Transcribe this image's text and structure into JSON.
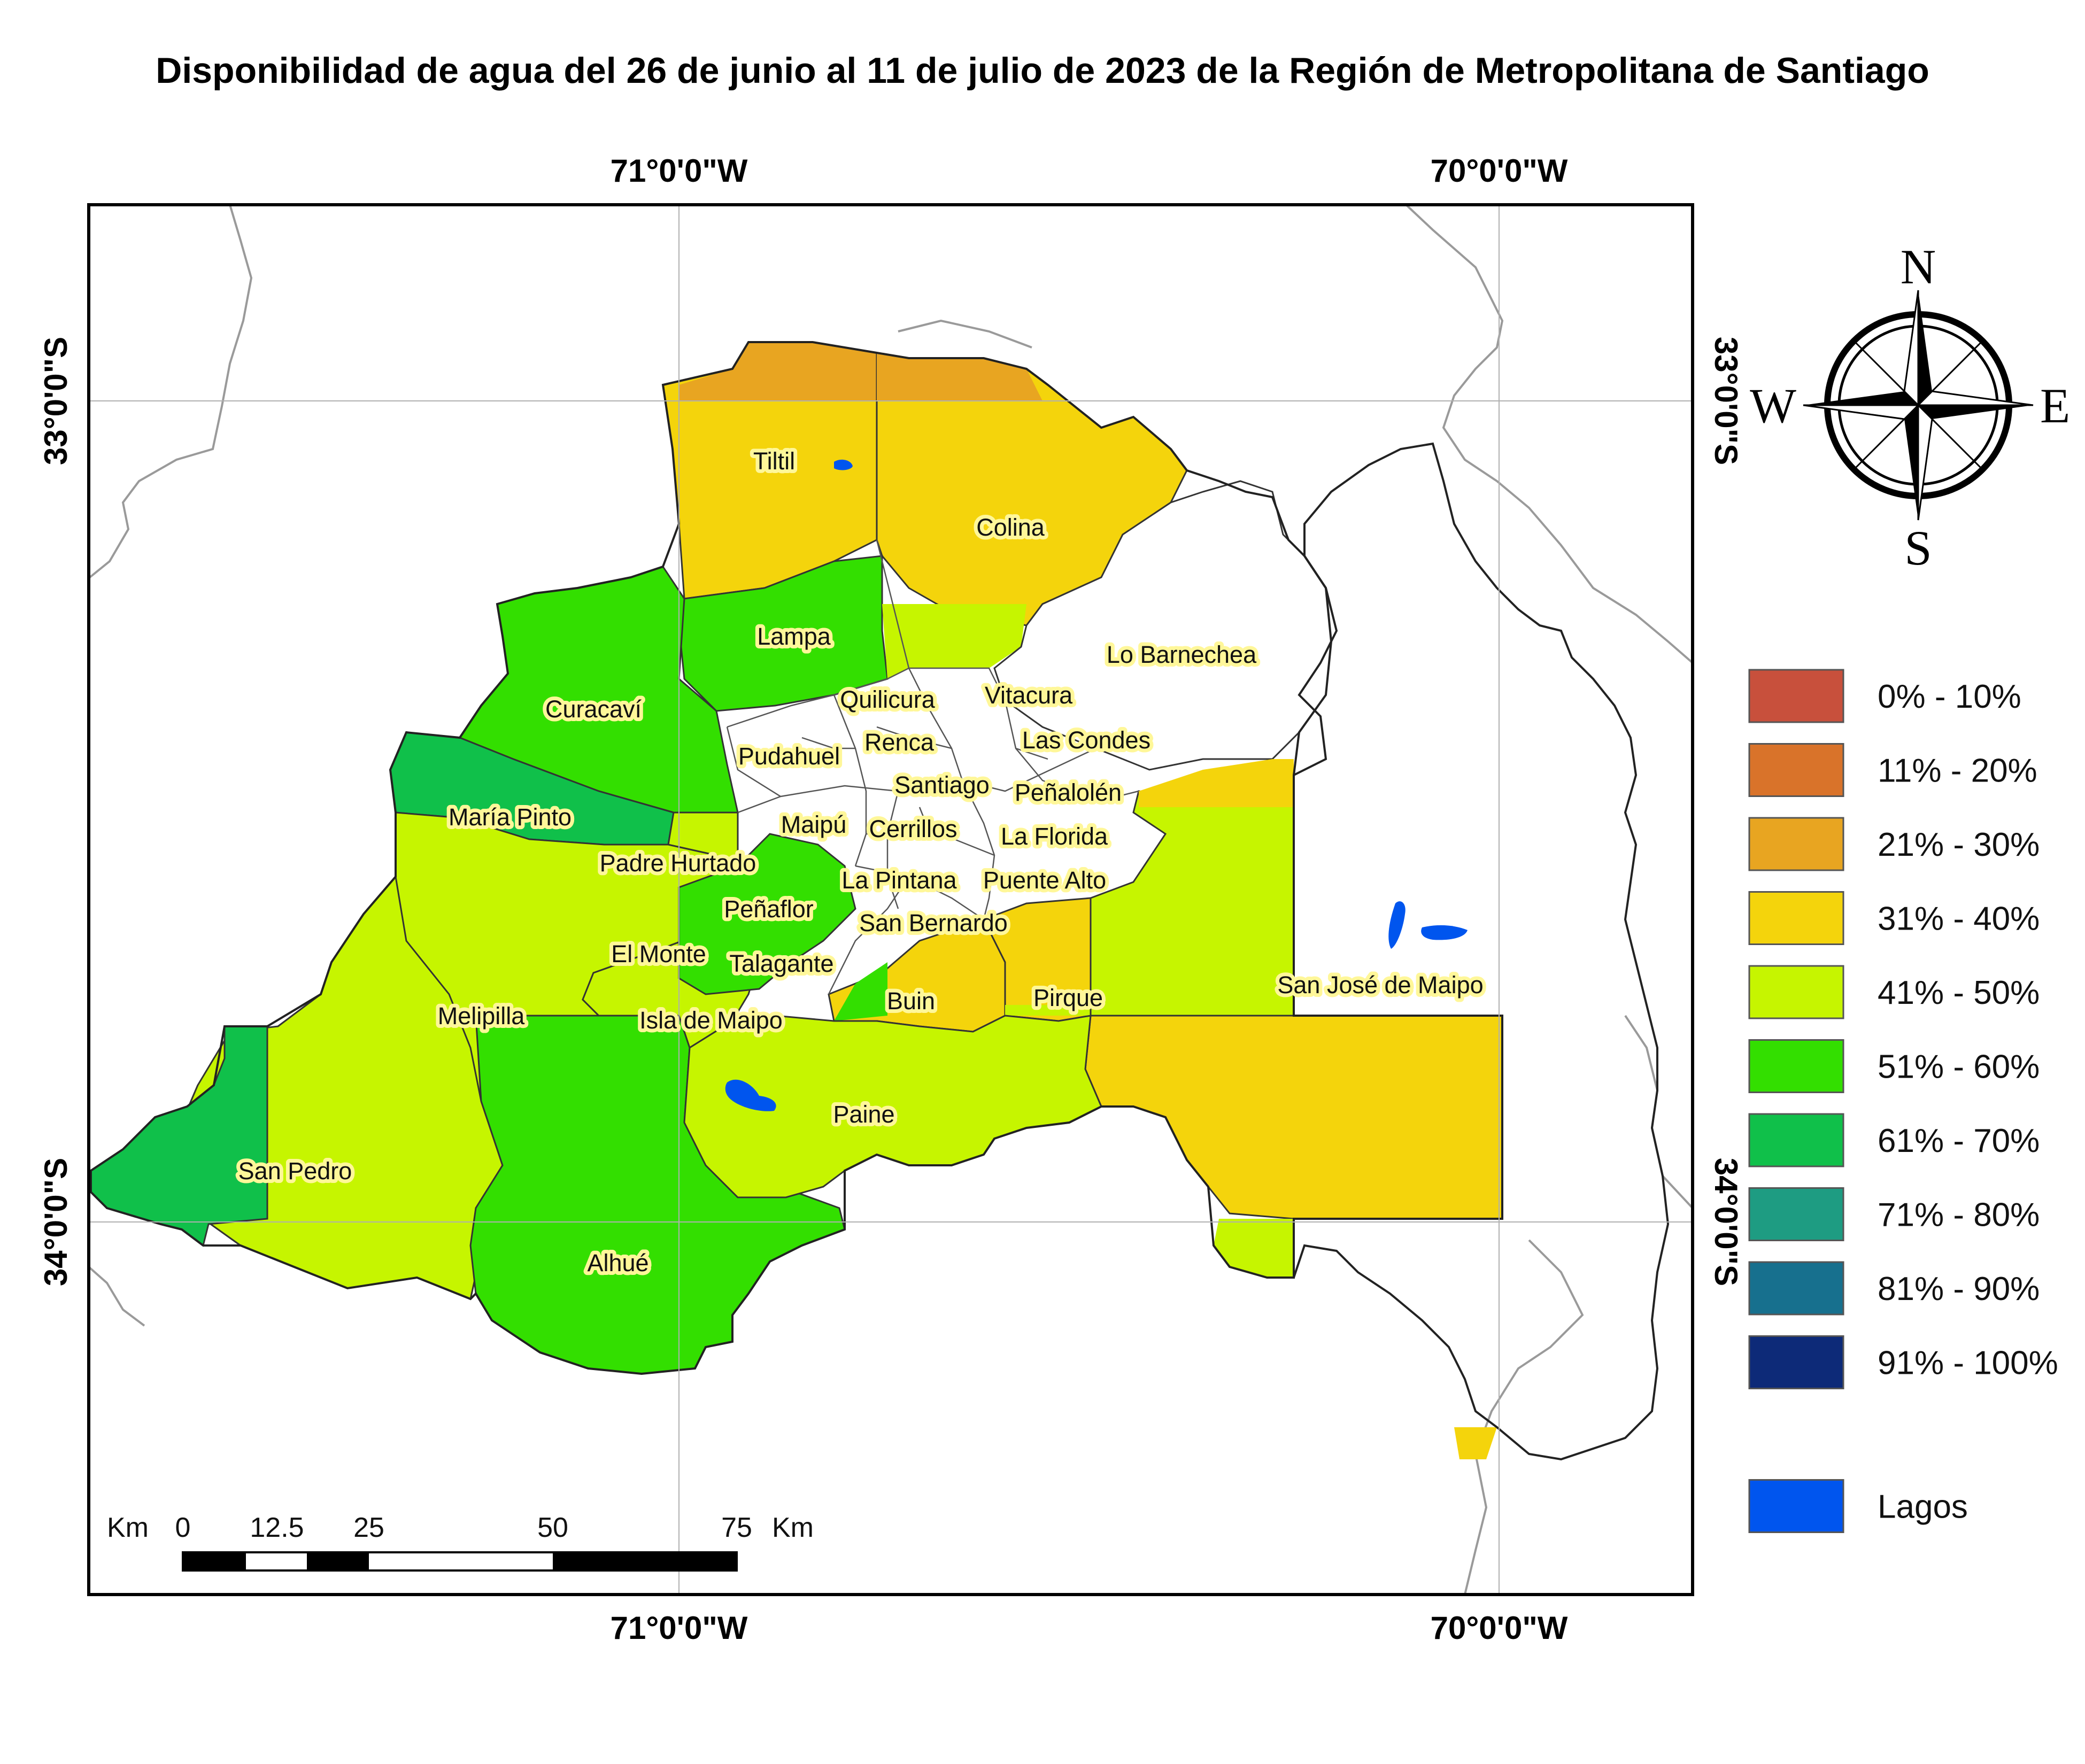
{
  "title": "Disponibilidad de agua del 26 de junio al 11 de julio de 2023 de la Región de Metropolitana de Santiago",
  "coordinates": {
    "lon_west": "71°0'0\"W",
    "lon_east": "70°0'0\"W",
    "lat_north": "33°0'0\"S",
    "lat_south": "34°0'0\"S"
  },
  "compass": {
    "north": "N",
    "south": "S",
    "east": "E",
    "west": "W"
  },
  "legend": {
    "classes": [
      {
        "label": "0% - 10%",
        "color": "#c8503c"
      },
      {
        "label": "11% - 20%",
        "color": "#d9732a"
      },
      {
        "label": "21% - 30%",
        "color": "#e8a521"
      },
      {
        "label": "31% - 40%",
        "color": "#f4d40c"
      },
      {
        "label": "41% - 50%",
        "color": "#c6f500"
      },
      {
        "label": "51% - 60%",
        "color": "#33df00"
      },
      {
        "label": "61% - 70%",
        "color": "#10c04a"
      },
      {
        "label": "71% - 80%",
        "color": "#1e9c82"
      },
      {
        "label": "81% - 90%",
        "color": "#17708e"
      },
      {
        "label": "91% - 100%",
        "color": "#0d2a78"
      }
    ],
    "lakes": {
      "label": "Lagos",
      "color": "#0055ee"
    }
  },
  "scale_bar": {
    "unit_left": "Km",
    "unit_right": "Km",
    "ticks": [
      "0",
      "12.5",
      "25",
      "50",
      "75"
    ]
  },
  "communes": {
    "tiltil": "Tiltil",
    "colina": "Colina",
    "lampa": "Lampa",
    "lo_barnechea": "Lo Barnechea",
    "quilicura": "Quilicura",
    "vitacura": "Vitacura",
    "curacavi": "Curacaví",
    "renca": "Renca",
    "las_condes": "Las Condes",
    "pudahuel": "Pudahuel",
    "santiago": "Santiago",
    "penalolen": "Peñalolén",
    "maria_pinto": "María Pinto",
    "maipu": "Maipú",
    "cerrillos": "Cerrillos",
    "la_florida": "La Florida",
    "padre_hurtado": "Padre Hurtado",
    "la_pintana": "La Pintana",
    "puente_alto": "Puente Alto",
    "penaflor": "Peñaflor",
    "san_bernardo": "San Bernardo",
    "el_monte": "El Monte",
    "talagante": "Talagante",
    "buin": "Buin",
    "pirque": "Pirque",
    "san_jose_de_maipo": "San José de Maipo",
    "melipilla": "Melipilla",
    "isla_de_maipo": "Isla de Maipo",
    "paine": "Paine",
    "san_pedro": "San Pedro",
    "alhue": "Alhué"
  }
}
